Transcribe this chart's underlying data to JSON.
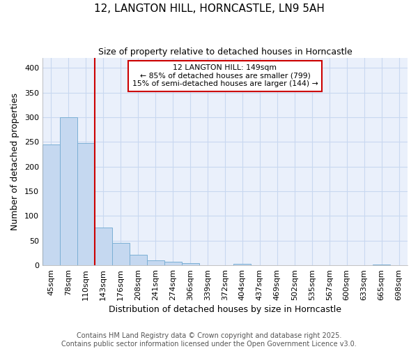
{
  "title_line1": "12, LANGTON HILL, HORNCASTLE, LN9 5AH",
  "title_line2": "Size of property relative to detached houses in Horncastle",
  "xlabel": "Distribution of detached houses by size in Horncastle",
  "ylabel": "Number of detached properties",
  "categories": [
    "45sqm",
    "78sqm",
    "110sqm",
    "143sqm",
    "176sqm",
    "208sqm",
    "241sqm",
    "274sqm",
    "306sqm",
    "339sqm",
    "372sqm",
    "404sqm",
    "437sqm",
    "469sqm",
    "502sqm",
    "535sqm",
    "567sqm",
    "600sqm",
    "633sqm",
    "665sqm",
    "698sqm"
  ],
  "values": [
    245,
    300,
    248,
    77,
    46,
    22,
    10,
    7,
    4,
    0,
    0,
    3,
    0,
    0,
    0,
    0,
    0,
    0,
    0,
    2,
    0
  ],
  "bar_color": "#c5d8f0",
  "bar_edge_color": "#7bafd4",
  "marker_index": 3,
  "marker_color": "#cc0000",
  "annotation_title": "12 LANGTON HILL: 149sqm",
  "annotation_line1": "← 85% of detached houses are smaller (799)",
  "annotation_line2": "15% of semi-detached houses are larger (144) →",
  "annotation_box_color": "#cc0000",
  "ylim": [
    0,
    420
  ],
  "yticks": [
    0,
    50,
    100,
    150,
    200,
    250,
    300,
    350,
    400
  ],
  "footnote_line1": "Contains HM Land Registry data © Crown copyright and database right 2025.",
  "footnote_line2": "Contains public sector information licensed under the Open Government Licence v3.0.",
  "fig_bg_color": "#ffffff",
  "plot_bg_color": "#eaf0fb",
  "grid_color": "#c8d8f0",
  "title_fontsize": 11,
  "subtitle_fontsize": 9,
  "tick_fontsize": 8,
  "label_fontsize": 9,
  "footnote_fontsize": 7
}
